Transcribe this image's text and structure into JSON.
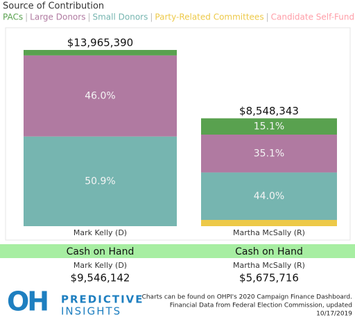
{
  "chart_data": {
    "type": "bar",
    "stacked": true,
    "title": "Source of Contribution",
    "legend_separator": "|",
    "categories": [
      "Mark Kelly (D)",
      "Martha McSally (R)"
    ],
    "series": [
      {
        "name": "PACs",
        "color": "#59a14f",
        "values": [
          3.1,
          15.1
        ],
        "value_labels": [
          null,
          "15.1%"
        ]
      },
      {
        "name": "Large Donors",
        "color": "#b07aa1",
        "values": [
          46.0,
          35.1
        ],
        "value_labels": [
          "46.0%",
          "35.1%"
        ]
      },
      {
        "name": "Small Donors",
        "color": "#76b5b0",
        "values": [
          50.9,
          44.0
        ],
        "value_labels": [
          "50.9%",
          "44.0%"
        ]
      },
      {
        "name": "Party-Related Committees",
        "color": "#edc948",
        "values": [
          0,
          5.8
        ],
        "value_labels": [
          null,
          null
        ]
      },
      {
        "name": "Candidate Self-Funding",
        "color": "#ff9da7",
        "values": [
          0,
          0
        ],
        "value_labels": [
          null,
          null
        ]
      }
    ],
    "totals": {
      "values": [
        13965390,
        8548343
      ],
      "value_labels": [
        "$13,965,390",
        "$8,548,343"
      ]
    }
  },
  "cash_on_hand": {
    "label": "Cash on Hand",
    "rows": [
      {
        "name": "Mark Kelly (D)",
        "value": 9546142,
        "value_label": "$9,546,142"
      },
      {
        "name": "Martha McSally (R)",
        "value": 5675716,
        "value_label": "$5,675,716"
      }
    ]
  },
  "logo": {
    "mark": "OH",
    "line1": "PREDICTIVE",
    "line2": "INSIGHTS"
  },
  "footer": {
    "lines": [
      "Charts can be found on OHPI's 2020 Campaign Finance Dashboard.",
      "Financial Data from Federal Election Commission, updated",
      "10/17/2019"
    ]
  }
}
